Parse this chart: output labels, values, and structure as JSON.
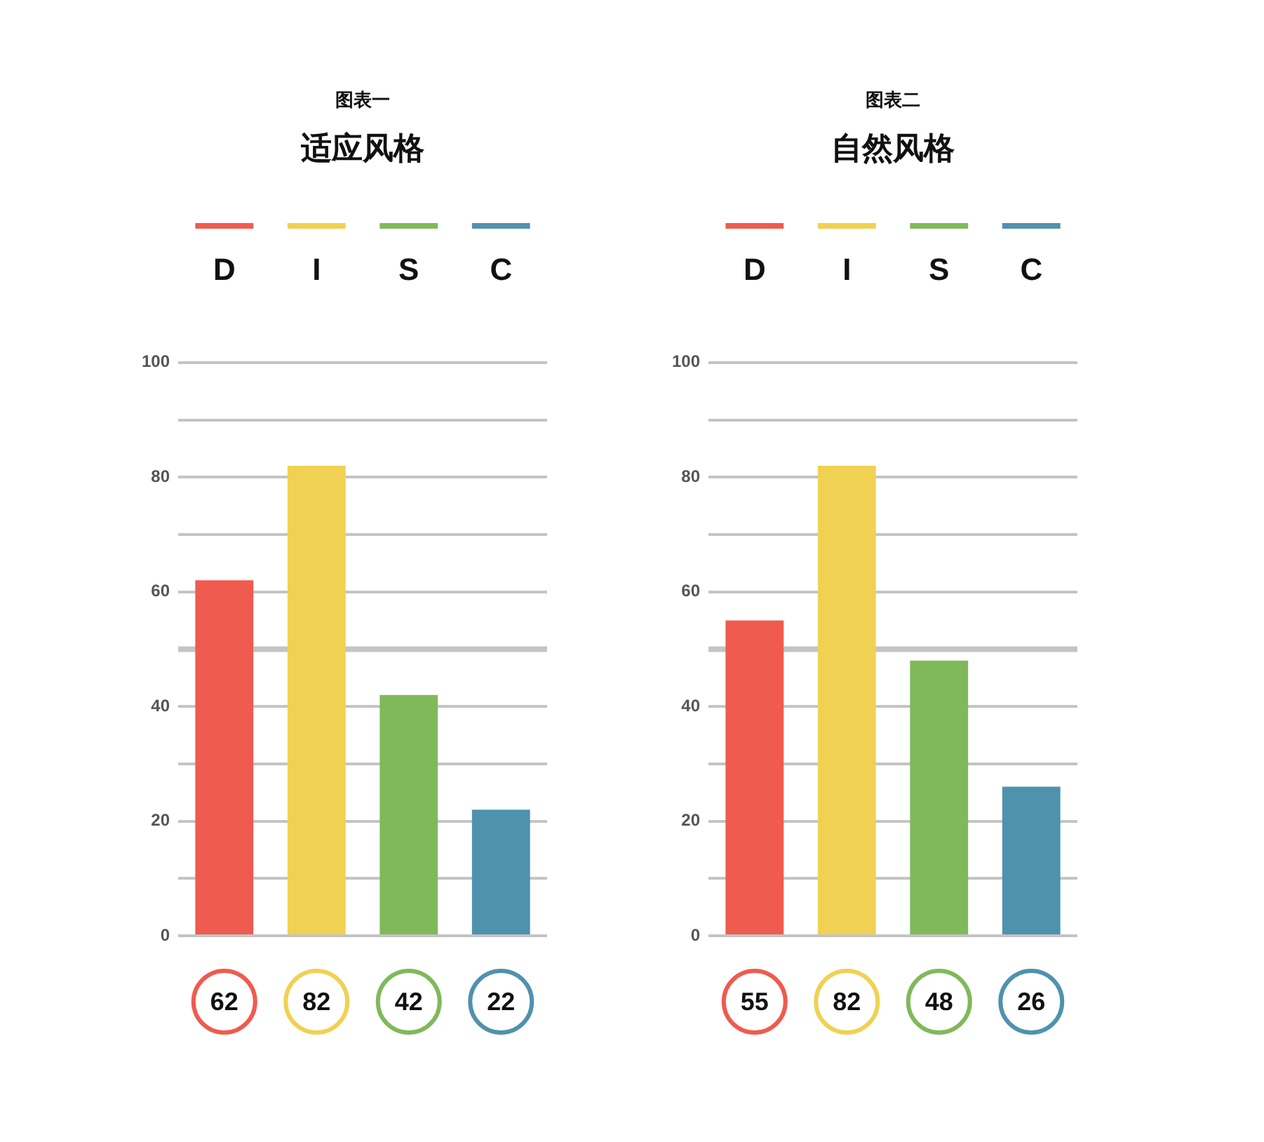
{
  "chart_data": [
    {
      "type": "bar",
      "title": "图表一",
      "subtitle": "适应风格",
      "categories": [
        "D",
        "I",
        "S",
        "C"
      ],
      "values": [
        62,
        82,
        42,
        22
      ],
      "colors": [
        "#ef5b4f",
        "#f0d152",
        "#80b95a",
        "#4f92ae"
      ],
      "ylim": [
        0,
        100
      ],
      "yticks": [
        0,
        {
          "value": 10,
          "label": null
        },
        20,
        {
          "value": 30,
          "label": null
        },
        40,
        {
          "value": 50,
          "label": null
        },
        60,
        {
          "value": 70,
          "label": null
        },
        80,
        {
          "value": 90,
          "label": null
        },
        100
      ],
      "grid": "y",
      "ref_lines": [
        {
          "axis": "y",
          "value": 50
        }
      ],
      "data_labels": true
    },
    {
      "type": "bar",
      "title": "图表二",
      "subtitle": "自然风格",
      "categories": [
        "D",
        "I",
        "S",
        "C"
      ],
      "values": [
        55,
        82,
        48,
        26
      ],
      "colors": [
        "#ef5b4f",
        "#f0d152",
        "#80b95a",
        "#4f92ae"
      ],
      "ylim": [
        0,
        100
      ],
      "yticks": [
        0,
        {
          "value": 10,
          "label": null
        },
        20,
        {
          "value": 30,
          "label": null
        },
        40,
        {
          "value": 50,
          "label": null
        },
        60,
        {
          "value": 70,
          "label": null
        },
        80,
        {
          "value": 90,
          "label": null
        },
        100
      ],
      "grid": "y",
      "ref_lines": [
        {
          "axis": "y",
          "value": 50
        }
      ],
      "data_labels": true
    }
  ]
}
